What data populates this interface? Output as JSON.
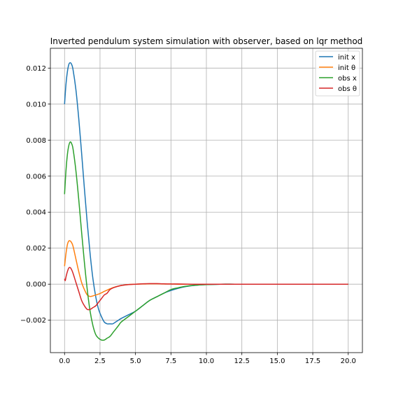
{
  "chart_data": {
    "type": "line",
    "title": "Inverted pendulum system simulation with observer, based on lqr method",
    "xlabel": "",
    "ylabel": "",
    "xlim": [
      -1.0,
      21.0
    ],
    "ylim": [
      -0.0038,
      0.0131
    ],
    "xticks": [
      0.0,
      2.5,
      5.0,
      7.5,
      10.0,
      12.5,
      15.0,
      17.5,
      20.0
    ],
    "xtick_labels": [
      "0.0",
      "2.5",
      "5.0",
      "7.5",
      "10.0",
      "12.5",
      "15.0",
      "17.5",
      "20.0"
    ],
    "yticks": [
      -0.002,
      0.0,
      0.002,
      0.004,
      0.006,
      0.008,
      0.01,
      0.012
    ],
    "ytick_labels": [
      "−0.002",
      "0.000",
      "0.002",
      "0.004",
      "0.006",
      "0.008",
      "0.010",
      "0.012"
    ],
    "grid": true,
    "legend_position": "top-right",
    "series": [
      {
        "name": "init x",
        "color": "#1f77b4",
        "x": [
          0,
          0.1,
          0.2,
          0.3,
          0.4,
          0.5,
          0.6,
          0.8,
          1.0,
          1.2,
          1.4,
          1.6,
          1.8,
          2.0,
          2.2,
          2.4,
          2.6,
          2.8,
          3.0,
          3.2,
          3.4,
          3.6,
          3.8,
          4.0,
          4.5,
          5.0,
          5.5,
          6.0,
          6.5,
          7.0,
          7.5,
          8.0,
          8.5,
          9.0,
          9.5,
          10.0,
          11.0,
          12.0,
          13.0,
          14.0,
          16.0,
          18.0,
          20.0
        ],
        "y": [
          0.01,
          0.0111,
          0.0118,
          0.0122,
          0.0123,
          0.0122,
          0.0119,
          0.0108,
          0.0092,
          0.0073,
          0.0053,
          0.0034,
          0.0017,
          0.0003,
          -0.0007,
          -0.0014,
          -0.0018,
          -0.0021,
          -0.0022,
          -0.0022,
          -0.0022,
          -0.0021,
          -0.002,
          -0.0019,
          -0.0017,
          -0.0015,
          -0.0012,
          -0.0009,
          -0.0007,
          -0.0005,
          -0.00035,
          -0.00023,
          -0.00014,
          -8e-05,
          -4e-05,
          -2e-05,
          0.0,
          0.0,
          0.0,
          0.0,
          0.0,
          0.0,
          0.0
        ]
      },
      {
        "name": "init θ",
        "color": "#ff7f0e",
        "x": [
          0,
          0.1,
          0.2,
          0.3,
          0.4,
          0.5,
          0.6,
          0.8,
          1.0,
          1.2,
          1.4,
          1.6,
          1.8,
          2.0,
          2.2,
          2.4,
          2.6,
          2.8,
          3.0,
          3.2,
          3.5,
          4.0,
          4.5,
          5.0,
          5.5,
          6.0,
          6.5,
          7.0,
          7.5,
          8.0,
          9.0,
          10.0,
          12.0,
          15.0,
          20.0
        ],
        "y": [
          0.001,
          0.0017,
          0.0022,
          0.0024,
          0.0024,
          0.0023,
          0.0021,
          0.0014,
          0.0007,
          0.0001,
          -0.0003,
          -0.0006,
          -0.00068,
          -0.00065,
          -0.0006,
          -0.00055,
          -0.00048,
          -0.0004,
          -0.00033,
          -0.00026,
          -0.00017,
          -7e-05,
          -2e-05,
          0.0,
          1e-05,
          2e-05,
          2e-05,
          1e-05,
          1e-05,
          0.0,
          0.0,
          0.0,
          0.0,
          0.0,
          0.0
        ]
      },
      {
        "name": "obs x",
        "color": "#2ca02c",
        "x": [
          0,
          0.1,
          0.2,
          0.3,
          0.4,
          0.5,
          0.6,
          0.8,
          1.0,
          1.2,
          1.4,
          1.6,
          1.8,
          2.0,
          2.2,
          2.4,
          2.6,
          2.8,
          3.0,
          3.2,
          3.4,
          3.6,
          3.8,
          4.0,
          4.5,
          5.0,
          5.5,
          6.0,
          6.5,
          7.0,
          7.5,
          8.0,
          8.5,
          9.0,
          9.5,
          10.0,
          11.0,
          12.0,
          13.0,
          14.0,
          16.0,
          18.0,
          20.0
        ],
        "y": [
          0.005,
          0.0063,
          0.0072,
          0.0077,
          0.0079,
          0.0078,
          0.0075,
          0.0063,
          0.0047,
          0.0029,
          0.0012,
          -0.0003,
          -0.0015,
          -0.0023,
          -0.0028,
          -0.003,
          -0.0031,
          -0.0031,
          -0.003,
          -0.0029,
          -0.0027,
          -0.0025,
          -0.0023,
          -0.0021,
          -0.0018,
          -0.0015,
          -0.0012,
          -0.0009,
          -0.0007,
          -0.0005,
          -0.0003,
          -0.0002,
          -0.00012,
          -7e-05,
          -4e-05,
          -2e-05,
          0.0,
          0.0,
          0.0,
          0.0,
          0.0,
          0.0,
          0.0
        ]
      },
      {
        "name": "obs θ",
        "color": "#d62728",
        "x": [
          0,
          0.05,
          0.1,
          0.2,
          0.3,
          0.4,
          0.5,
          0.6,
          0.8,
          1.0,
          1.2,
          1.4,
          1.6,
          1.8,
          2.0,
          2.2,
          2.4,
          2.6,
          2.8,
          3.0,
          3.2,
          3.5,
          4.0,
          4.5,
          5.0,
          5.5,
          6.0,
          6.5,
          7.0,
          7.5,
          8.0,
          9.0,
          10.0,
          12.0,
          15.0,
          20.0
        ],
        "y": [
          0.0003,
          0.0002,
          0.0004,
          0.0007,
          0.0009,
          0.00092,
          0.0008,
          0.0006,
          0.0001,
          -0.0004,
          -0.0009,
          -0.0012,
          -0.0014,
          -0.0014,
          -0.0013,
          -0.0012,
          -0.001,
          -0.0008,
          -0.0006,
          -0.0005,
          -0.0003,
          -0.00018,
          -7e-05,
          -2e-05,
          0.0,
          2e-05,
          3e-05,
          3e-05,
          2e-05,
          1e-05,
          1e-05,
          0.0,
          0.0,
          0.0,
          0.0,
          0.0
        ]
      }
    ]
  }
}
